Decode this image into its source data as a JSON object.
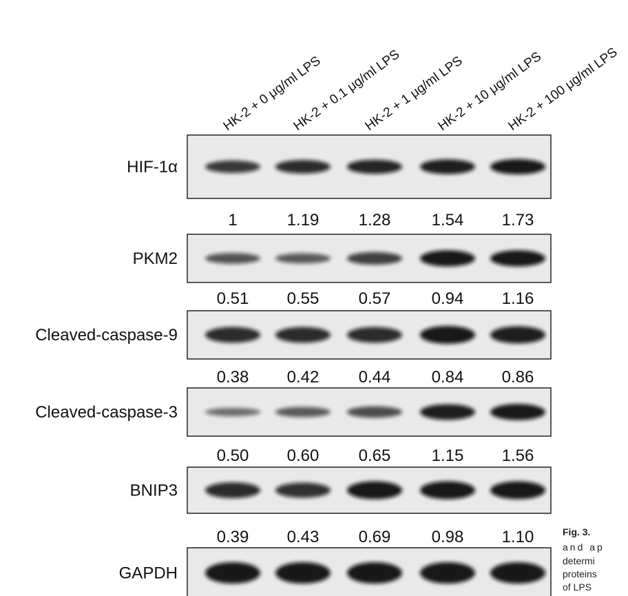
{
  "lanes": [
    "HK-2 + 0 μg/ml LPS",
    "HK-2 + 0.1 μg/ml LPS",
    "HK-2 + 1 μg/ml LPS",
    "HK-2 + 10 μg/ml LPS",
    "HK-2 + 100 μg/ml LPS"
  ],
  "rows": [
    {
      "label": "HIF-1α",
      "values": [
        "1",
        "1.19",
        "1.28",
        "1.54",
        "1.73"
      ]
    },
    {
      "label": "PKM2",
      "values": [
        "0.51",
        "0.55",
        "0.57",
        "0.94",
        "1.16"
      ]
    },
    {
      "label": "Cleaved-caspase-9",
      "values": [
        "0.38",
        "0.42",
        "0.44",
        "0.84",
        "0.86"
      ]
    },
    {
      "label": "Cleaved-caspase-3",
      "values": [
        "0.50",
        "0.60",
        "0.65",
        "1.15",
        "1.56"
      ]
    },
    {
      "label": "BNIP3",
      "values": [
        "0.39",
        "0.43",
        "0.69",
        "0.98",
        "1.10"
      ]
    },
    {
      "label": "GAPDH"
    }
  ],
  "caption": {
    "figure": "Fig. 3.",
    "lines": [
      "and ap",
      "determi",
      "proteins",
      "of LPS"
    ]
  }
}
